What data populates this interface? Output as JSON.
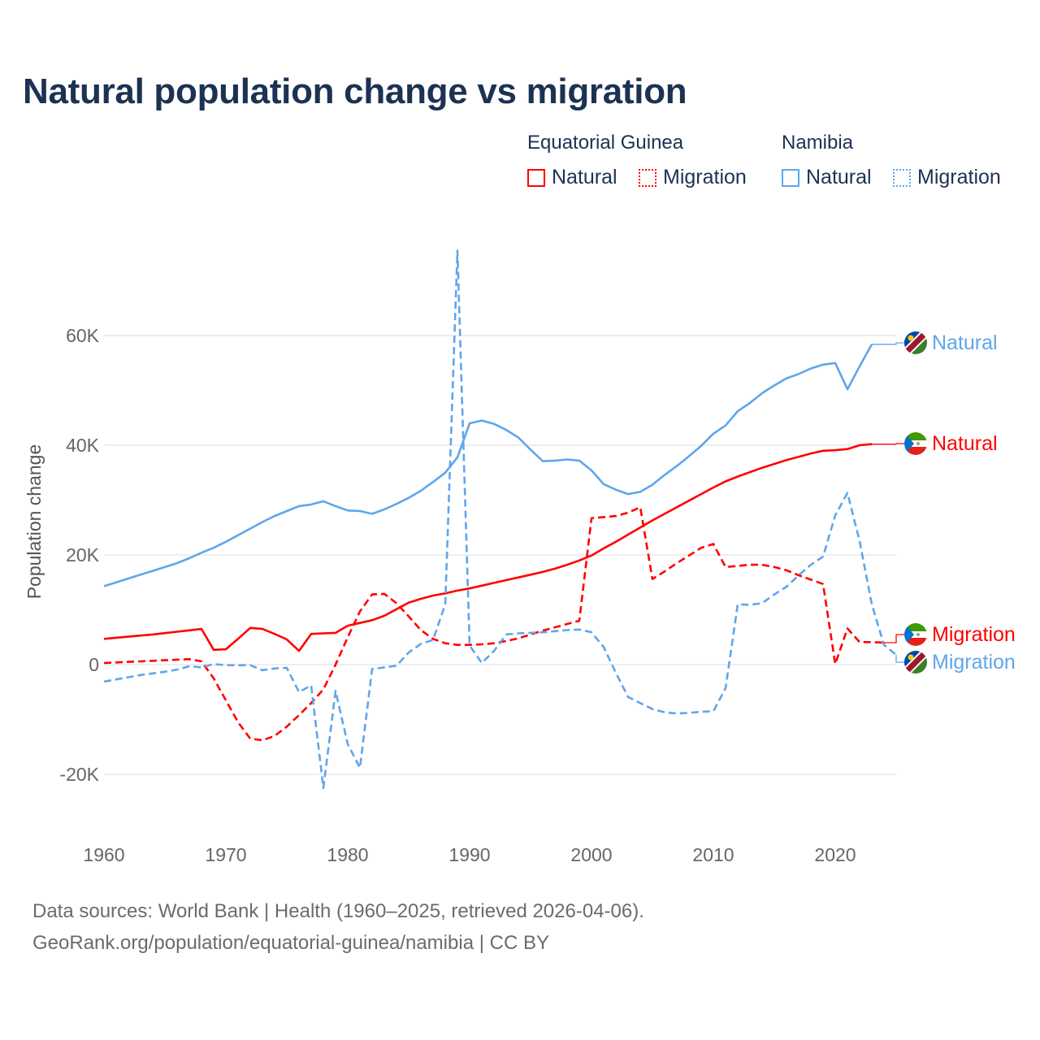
{
  "title": "Natural population change vs migration",
  "legend": {
    "groups": [
      {
        "name": "Equatorial Guinea",
        "items": [
          "Natural",
          "Migration"
        ]
      },
      {
        "name": "Namibia",
        "items": [
          "Natural",
          "Migration"
        ]
      }
    ]
  },
  "footer": {
    "line1": "Data sources: World Bank | Health (1960–2025, retrieved 2026-04-06).",
    "line2": "GeoRank.org/population/equatorial-guinea/namibia | CC BY"
  },
  "colors": {
    "equatorial_guinea": "#ff0000",
    "namibia": "#5ea6eb",
    "grid": "#e9e9e9",
    "tick": "#666666"
  },
  "chart_data": {
    "type": "line",
    "title": "Natural population change vs migration",
    "xlabel": "",
    "ylabel": "Population change",
    "xlim": [
      1960,
      2025
    ],
    "ylim": [
      -30,
      80
    ],
    "value_unit": "thousands",
    "x_ticks": [
      1960,
      1970,
      1980,
      1990,
      2000,
      2010,
      2020
    ],
    "x_tick_labels": [
      "1960",
      "1970",
      "1980",
      "1990",
      "2000",
      "2010",
      "2020"
    ],
    "y_ticks": [
      60,
      40,
      20,
      0,
      -20
    ],
    "y_tick_labels": [
      "60K",
      "40K",
      "20K",
      "0",
      "-20K"
    ],
    "grid": true,
    "legend_position": "top-right",
    "series": [
      {
        "name": "Natural",
        "country": "Equatorial Guinea",
        "color_key": "equatorial_guinea",
        "dashed": false,
        "end_label": "Natural",
        "start_year": 1960,
        "values": [
          4.7,
          4.9,
          5.1,
          5.3,
          5.5,
          5.75,
          6.0,
          6.25,
          6.5,
          2.7,
          2.8,
          4.7,
          6.7,
          6.5,
          5.6,
          4.6,
          2.5,
          5.6,
          5.7,
          5.8,
          7.1,
          7.6,
          8.1,
          8.9,
          10.1,
          11.3,
          12.0,
          12.6,
          13.0,
          13.5,
          13.9,
          14.4,
          14.9,
          15.4,
          15.9,
          16.4,
          16.9,
          17.5,
          18.2,
          19.0,
          19.9,
          21.2,
          22.4,
          23.7,
          25.0,
          26.3,
          27.5,
          28.7,
          29.9,
          31.1,
          32.3,
          33.4,
          34.3,
          35.1,
          35.9,
          36.6,
          37.3,
          37.9,
          38.5,
          39.0,
          39.1,
          39.3,
          40.0,
          40.2
        ]
      },
      {
        "name": "Migration",
        "country": "Equatorial Guinea",
        "color_key": "equatorial_guinea",
        "dashed": true,
        "end_label": "Migration",
        "start_year": 1960,
        "values": [
          0.3,
          0.4,
          0.5,
          0.6,
          0.7,
          0.8,
          0.9,
          1.0,
          0.6,
          -2.5,
          -6.5,
          -10.5,
          -13.5,
          -13.8,
          -13.0,
          -11.3,
          -9.2,
          -7.0,
          -4.5,
          0.0,
          5.0,
          9.7,
          12.8,
          12.9,
          11.2,
          8.8,
          6.3,
          4.7,
          3.9,
          3.6,
          3.6,
          3.7,
          3.9,
          4.3,
          4.8,
          5.5,
          6.2,
          6.8,
          7.4,
          8.0,
          26.7,
          26.9,
          27.1,
          27.7,
          28.7,
          15.6,
          17.0,
          18.5,
          19.9,
          21.3,
          22.0,
          17.8,
          18.0,
          18.2,
          18.2,
          17.8,
          17.2,
          16.3,
          15.5,
          14.7,
          0.1,
          6.6,
          4.1,
          4.1,
          4.0
        ]
      },
      {
        "name": "Natural",
        "country": "Namibia",
        "color_key": "namibia",
        "dashed": false,
        "end_label": "Natural",
        "start_year": 1960,
        "values": [
          14.3,
          15.0,
          15.7,
          16.4,
          17.1,
          17.8,
          18.5,
          19.4,
          20.4,
          21.3,
          22.4,
          23.6,
          24.8,
          26.0,
          27.1,
          28.0,
          28.9,
          29.2,
          29.8,
          28.9,
          28.1,
          28.0,
          27.5,
          28.3,
          29.3,
          30.4,
          31.7,
          33.3,
          35.0,
          37.8,
          44.0,
          44.5,
          43.9,
          42.8,
          41.4,
          39.2,
          37.1,
          37.2,
          37.4,
          37.2,
          35.4,
          32.9,
          31.9,
          31.1,
          31.5,
          32.8,
          34.6,
          36.2,
          38.0,
          39.9,
          42.1,
          43.6,
          46.2,
          47.7,
          49.5,
          50.9,
          52.2,
          53.0,
          54.0,
          54.7,
          55.0,
          50.2,
          54.4,
          58.4
        ]
      },
      {
        "name": "Migration",
        "country": "Namibia",
        "color_key": "namibia",
        "dashed": true,
        "end_label": "Migration",
        "start_year": 1960,
        "values": [
          -3.1,
          -2.7,
          -2.3,
          -1.9,
          -1.6,
          -1.3,
          -0.9,
          -0.3,
          -0.5,
          0.1,
          -0.1,
          -0.1,
          -0.1,
          -1.0,
          -0.7,
          -0.6,
          -5.0,
          -3.8,
          -22.5,
          -4.8,
          -14.5,
          -18.8,
          -0.8,
          -0.5,
          -0.2,
          2.2,
          3.8,
          4.5,
          11.0,
          75.5,
          3.5,
          0.3,
          2.5,
          5.5,
          5.7,
          5.8,
          5.9,
          6.1,
          6.3,
          6.4,
          5.9,
          3.2,
          -1.5,
          -5.9,
          -7.0,
          -8.1,
          -8.7,
          -8.9,
          -8.8,
          -8.6,
          -8.5,
          -4.3,
          11.0,
          10.9,
          11.2,
          12.8,
          14.2,
          16.3,
          18.2,
          19.7,
          27.2,
          31.3,
          22.5,
          11.0,
          3.6,
          1.8
        ]
      }
    ]
  }
}
